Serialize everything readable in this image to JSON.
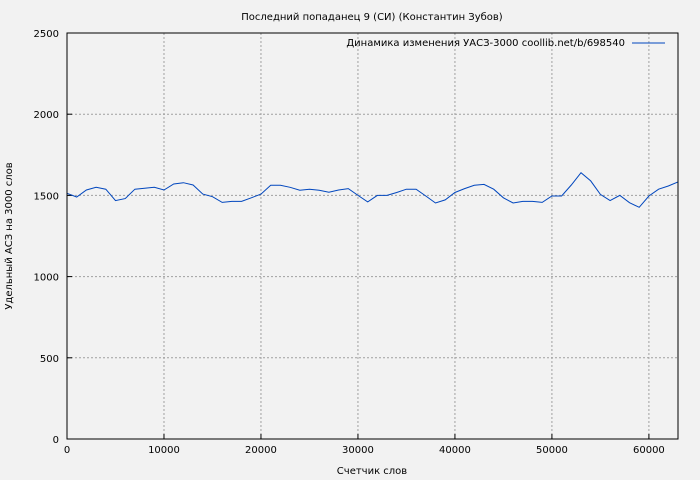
{
  "chart_data": {
    "type": "line",
    "title": "Последний попаданец 9 (СИ) (Константин Зубов)",
    "xlabel": "Счетчик слов",
    "ylabel": "Удельный АСЗ на 3000 слов",
    "xlim": [
      0,
      63000
    ],
    "ylim": [
      0,
      2500
    ],
    "xticks": [
      0,
      10000,
      20000,
      30000,
      40000,
      50000,
      60000
    ],
    "yticks": [
      0,
      500,
      1000,
      1500,
      2000,
      2500
    ],
    "grid": true,
    "legend_position": "top-right",
    "line_color": "#0046be",
    "series": [
      {
        "name": "Динамика изменения УАСЗ-3000 coollib.net/b/698540",
        "x": [
          0,
          1000,
          2000,
          3000,
          4000,
          5000,
          6000,
          7000,
          8000,
          9000,
          10000,
          11000,
          12000,
          13000,
          14000,
          15000,
          16000,
          17000,
          18000,
          19000,
          20000,
          21000,
          22000,
          23000,
          24000,
          25000,
          26000,
          27000,
          28000,
          29000,
          30000,
          31000,
          32000,
          33000,
          34000,
          35000,
          36000,
          37000,
          38000,
          39000,
          40000,
          41000,
          42000,
          43000,
          44000,
          45000,
          46000,
          47000,
          48000,
          49000,
          50000,
          51000,
          52000,
          53000,
          54000,
          55000,
          56000,
          57000,
          58000,
          59000,
          60000,
          61000,
          62000,
          63000
        ],
        "y": [
          1513,
          1490,
          1533,
          1550,
          1538,
          1468,
          1480,
          1538,
          1544,
          1550,
          1533,
          1570,
          1578,
          1564,
          1508,
          1492,
          1457,
          1463,
          1463,
          1485,
          1508,
          1562,
          1562,
          1550,
          1532,
          1538,
          1532,
          1520,
          1533,
          1542,
          1500,
          1460,
          1500,
          1500,
          1518,
          1538,
          1538,
          1496,
          1453,
          1472,
          1518,
          1542,
          1562,
          1568,
          1538,
          1485,
          1453,
          1463,
          1463,
          1457,
          1496,
          1496,
          1564,
          1640,
          1589,
          1506,
          1468,
          1500,
          1455,
          1427,
          1496,
          1538,
          1558,
          1583
        ]
      }
    ]
  }
}
